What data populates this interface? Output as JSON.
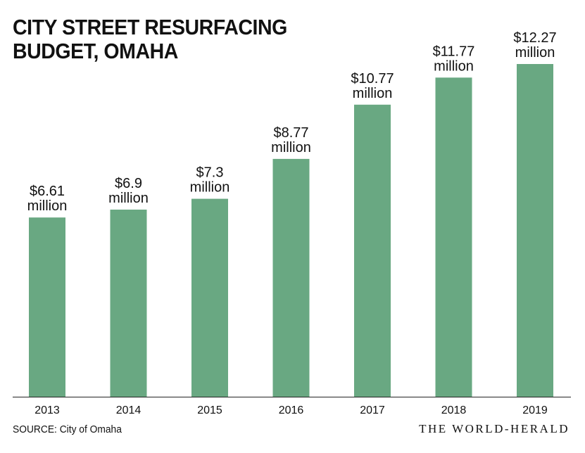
{
  "title": "CITY STREET RESURFACING BUDGET, OMAHA",
  "source": "SOURCE: City of Omaha",
  "publisher": "THE WORLD-HERALD",
  "colors": {
    "bar": "#69a882",
    "axis": "#222222",
    "text": "#111111"
  },
  "chart_data": {
    "type": "bar",
    "title": "CITY STREET RESURFACING BUDGET, OMAHA",
    "xlabel": "",
    "ylabel": "",
    "categories": [
      "2013",
      "2014",
      "2015",
      "2016",
      "2017",
      "2018",
      "2019"
    ],
    "values": [
      6.61,
      6.9,
      7.3,
      8.77,
      10.77,
      11.77,
      12.27
    ],
    "value_labels": [
      [
        "$6.61",
        "million"
      ],
      [
        "$6.9",
        "million"
      ],
      [
        "$7.3",
        "million"
      ],
      [
        "$8.77",
        "million"
      ],
      [
        "$10.77",
        "million"
      ],
      [
        "$11.77",
        "million"
      ],
      [
        "$12.27",
        "million"
      ]
    ],
    "unit": "million dollars",
    "ylim": [
      0,
      12.27
    ],
    "grid": false,
    "legend": "none"
  }
}
